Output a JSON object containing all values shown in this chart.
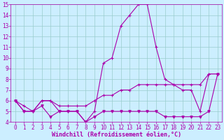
{
  "x": [
    0,
    1,
    2,
    3,
    4,
    5,
    6,
    7,
    8,
    9,
    10,
    11,
    12,
    13,
    14,
    15,
    16,
    17,
    18,
    19,
    20,
    21,
    22,
    23
  ],
  "line1": [
    6,
    5,
    5,
    6,
    6,
    5,
    5,
    5,
    4,
    5,
    9.5,
    10,
    13,
    14,
    15,
    15,
    11,
    8,
    7.5,
    7,
    7,
    5,
    8.5,
    8.5
  ],
  "line2": [
    6,
    5.5,
    5,
    6,
    6,
    5.5,
    5.5,
    5.5,
    5.5,
    6,
    6.5,
    6.5,
    7,
    7,
    7.5,
    7.5,
    7.5,
    7.5,
    7.5,
    7.5,
    7.5,
    7.5,
    8.5,
    8.5
  ],
  "line3": [
    6,
    5,
    5,
    5.5,
    4.5,
    5,
    5,
    5,
    4,
    4.5,
    5,
    5,
    5,
    5,
    5,
    5,
    5,
    4.5,
    4.5,
    4.5,
    4.5,
    4.5,
    5,
    8.5
  ],
  "bg_color": "#cceeff",
  "line_color": "#aa00aa",
  "grid_color": "#99cccc",
  "xlabel": "Windchill (Refroidissement éolien,°C)",
  "xlim": [
    -0.5,
    23.5
  ],
  "ylim": [
    4,
    15
  ],
  "xticks": [
    0,
    1,
    2,
    3,
    4,
    5,
    6,
    7,
    8,
    9,
    10,
    11,
    12,
    13,
    14,
    15,
    16,
    17,
    18,
    19,
    20,
    21,
    22,
    23
  ],
  "yticks": [
    4,
    5,
    6,
    7,
    8,
    9,
    10,
    11,
    12,
    13,
    14,
    15
  ],
  "xlabel_fontsize": 6,
  "tick_fontsize": 5.5
}
